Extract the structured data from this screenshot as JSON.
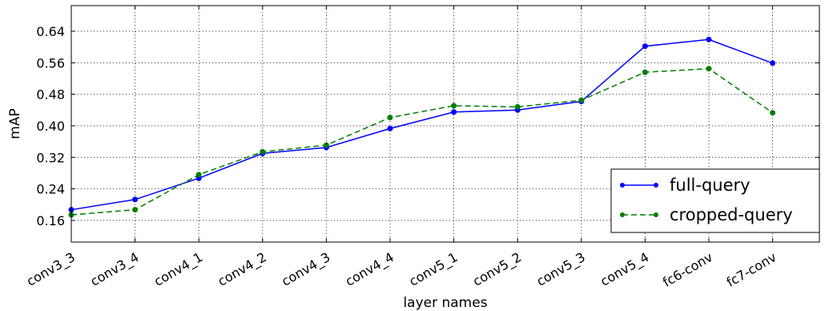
{
  "chart_data": {
    "type": "line",
    "title": "",
    "xlabel": "layer names",
    "ylabel": "mAP",
    "categories": [
      "conv3_3",
      "conv3_4",
      "conv4_1",
      "conv4_2",
      "conv4_3",
      "conv4_4",
      "conv5_1",
      "conv5_2",
      "conv5_3",
      "conv5_4",
      "fc6-conv",
      "fc7-conv"
    ],
    "yticks": [
      "0.16",
      "0.24",
      "0.32",
      "0.40",
      "0.48",
      "0.56",
      "0.64"
    ],
    "ylim": [
      0.105,
      0.705
    ],
    "grid": true,
    "legend_position": "bottom-right",
    "series": [
      {
        "name": "full-query",
        "color": "#0000ff",
        "linestyle": "solid",
        "values": [
          0.187,
          0.213,
          0.267,
          0.33,
          0.345,
          0.393,
          0.435,
          0.44,
          0.462,
          0.602,
          0.619,
          0.559
        ]
      },
      {
        "name": "cropped-query",
        "color": "#007f00",
        "linestyle": "dashed",
        "values": [
          0.174,
          0.187,
          0.276,
          0.334,
          0.351,
          0.421,
          0.451,
          0.448,
          0.465,
          0.536,
          0.545,
          0.433
        ]
      }
    ]
  }
}
